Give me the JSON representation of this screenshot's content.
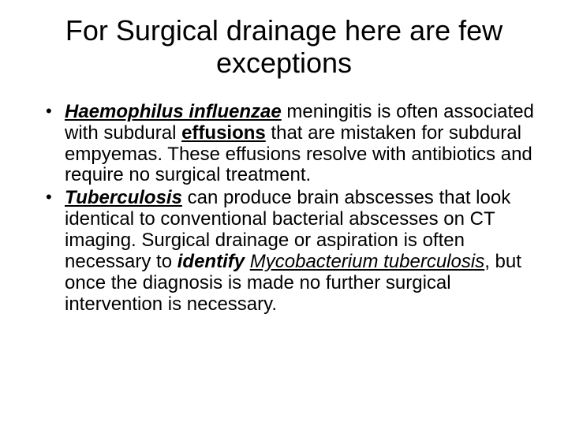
{
  "title_fontsize": 36,
  "body_fontsize": 24,
  "background_color": "#ffffff",
  "text_color": "#000000",
  "title": "For Surgical drainage here are few exceptions",
  "bullets": [
    {
      "lead": "Haemophilus influenzae",
      "p1a": " meningitis is often associated with subdural ",
      "p1b": "effusions",
      "p1c": " that are mistaken for subdural empyemas. These effusions resolve with antibiotics and require no surgical treatment."
    },
    {
      "lead": "Tuberculosis",
      "p1a": " can produce brain abscesses that look identical to conventional bacterial abscesses on CT imaging. Surgical drainage or aspiration is often necessary to ",
      "p1b": "identify",
      "p1c": " ",
      "p1d": "Mycobacterium tuberculosis",
      "p1e": ", but once the diagnosis is made no further surgical intervention is necessary."
    }
  ]
}
